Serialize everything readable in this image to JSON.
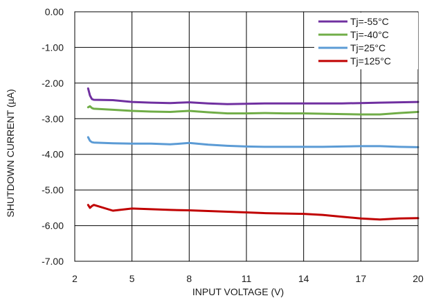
{
  "chart_data": {
    "type": "line",
    "xlabel": "INPUT VOLTAGE (V)",
    "ylabel": "SHUTDOWN CURRENT (µA)",
    "xlim": [
      2,
      20
    ],
    "ylim": [
      -7,
      0
    ],
    "x_ticks": [
      2,
      5,
      8,
      11,
      14,
      17,
      20
    ],
    "x_tick_labels": [
      "2",
      "5",
      "8",
      "11",
      "14",
      "17",
      "20"
    ],
    "y_ticks": [
      0,
      -1,
      -2,
      -3,
      -4,
      -5,
      -6,
      -7
    ],
    "y_tick_labels": [
      "0.00",
      "-1.00",
      "-2.00",
      "-3.00",
      "-4.00",
      "-5.00",
      "-6.00",
      "-7.00"
    ],
    "grid": true,
    "legend_position": "top-right",
    "series": [
      {
        "name": "Tj=-55°C",
        "color": "#7030a0",
        "points": [
          [
            2.7,
            -2.15
          ],
          [
            2.8,
            -2.35
          ],
          [
            2.9,
            -2.45
          ],
          [
            3.0,
            -2.47
          ],
          [
            4,
            -2.48
          ],
          [
            5,
            -2.53
          ],
          [
            6,
            -2.55
          ],
          [
            7,
            -2.56
          ],
          [
            8,
            -2.54
          ],
          [
            9,
            -2.57
          ],
          [
            10,
            -2.59
          ],
          [
            11,
            -2.58
          ],
          [
            12,
            -2.57
          ],
          [
            13,
            -2.57
          ],
          [
            14,
            -2.57
          ],
          [
            15,
            -2.57
          ],
          [
            16,
            -2.57
          ],
          [
            17,
            -2.56
          ],
          [
            18,
            -2.55
          ],
          [
            19,
            -2.54
          ],
          [
            20,
            -2.53
          ]
        ]
      },
      {
        "name": "Tj=-40°C",
        "color": "#70ad47",
        "points": [
          [
            2.7,
            -2.68
          ],
          [
            2.8,
            -2.65
          ],
          [
            2.9,
            -2.7
          ],
          [
            3.0,
            -2.72
          ],
          [
            4,
            -2.75
          ],
          [
            5,
            -2.78
          ],
          [
            6,
            -2.8
          ],
          [
            7,
            -2.81
          ],
          [
            8,
            -2.78
          ],
          [
            9,
            -2.82
          ],
          [
            10,
            -2.85
          ],
          [
            11,
            -2.85
          ],
          [
            12,
            -2.84
          ],
          [
            13,
            -2.85
          ],
          [
            14,
            -2.85
          ],
          [
            15,
            -2.86
          ],
          [
            16,
            -2.87
          ],
          [
            17,
            -2.88
          ],
          [
            18,
            -2.88
          ],
          [
            19,
            -2.84
          ],
          [
            20,
            -2.81
          ]
        ]
      },
      {
        "name": "Tj=25°C",
        "color": "#5b9bd5",
        "points": [
          [
            2.7,
            -3.52
          ],
          [
            2.8,
            -3.62
          ],
          [
            2.9,
            -3.66
          ],
          [
            3.0,
            -3.67
          ],
          [
            4,
            -3.69
          ],
          [
            5,
            -3.7
          ],
          [
            6,
            -3.7
          ],
          [
            7,
            -3.72
          ],
          [
            8,
            -3.68
          ],
          [
            9,
            -3.73
          ],
          [
            10,
            -3.76
          ],
          [
            11,
            -3.78
          ],
          [
            12,
            -3.79
          ],
          [
            13,
            -3.79
          ],
          [
            14,
            -3.79
          ],
          [
            15,
            -3.79
          ],
          [
            16,
            -3.78
          ],
          [
            17,
            -3.77
          ],
          [
            18,
            -3.77
          ],
          [
            19,
            -3.79
          ],
          [
            20,
            -3.8
          ]
        ]
      },
      {
        "name": "Tj=125°C",
        "color": "#c00000",
        "points": [
          [
            2.7,
            -5.42
          ],
          [
            2.8,
            -5.5
          ],
          [
            2.9,
            -5.45
          ],
          [
            3.0,
            -5.42
          ],
          [
            4,
            -5.58
          ],
          [
            5,
            -5.52
          ],
          [
            6,
            -5.54
          ],
          [
            7,
            -5.56
          ],
          [
            8,
            -5.57
          ],
          [
            9,
            -5.59
          ],
          [
            10,
            -5.61
          ],
          [
            11,
            -5.63
          ],
          [
            12,
            -5.65
          ],
          [
            13,
            -5.66
          ],
          [
            14,
            -5.67
          ],
          [
            15,
            -5.7
          ],
          [
            16,
            -5.75
          ],
          [
            17,
            -5.8
          ],
          [
            18,
            -5.83
          ],
          [
            19,
            -5.8
          ],
          [
            20,
            -5.79
          ]
        ]
      }
    ]
  }
}
